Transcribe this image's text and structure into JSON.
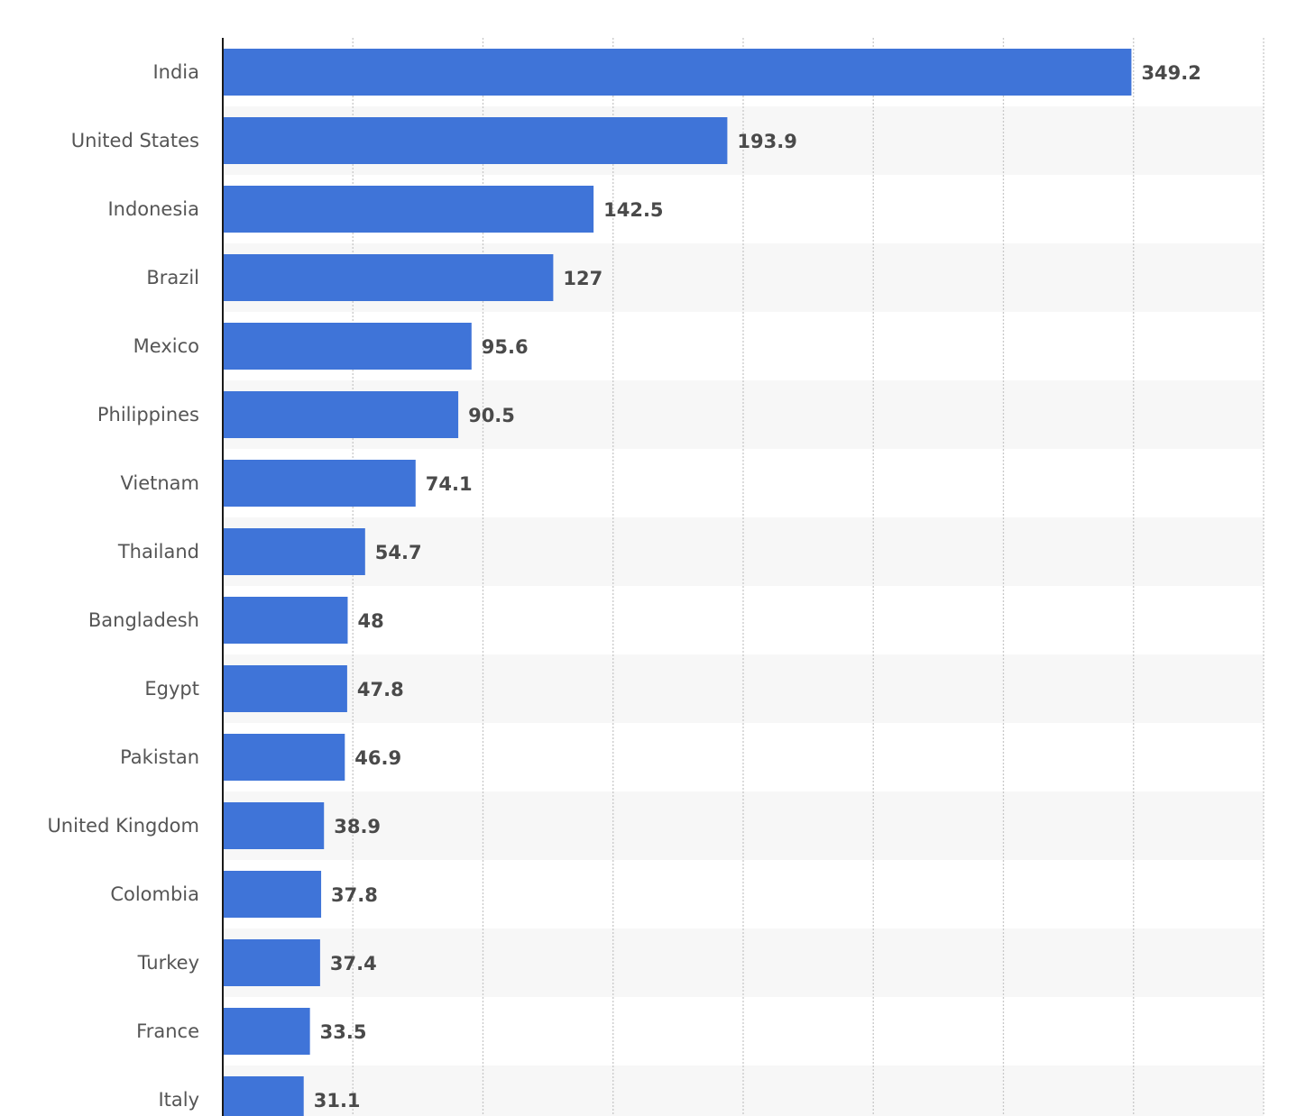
{
  "chart_data": {
    "type": "bar",
    "orientation": "horizontal",
    "categories": [
      "India",
      "United States",
      "Indonesia",
      "Brazil",
      "Mexico",
      "Philippines",
      "Vietnam",
      "Thailand",
      "Bangladesh",
      "Egypt",
      "Pakistan",
      "United Kingdom",
      "Colombia",
      "Turkey",
      "France",
      "Italy"
    ],
    "values": [
      349.2,
      193.9,
      142.5,
      127,
      95.6,
      90.5,
      74.1,
      54.7,
      48,
      47.8,
      46.9,
      38.9,
      37.8,
      37.4,
      33.5,
      31.1
    ],
    "value_labels": [
      "349.2",
      "193.9",
      "142.5",
      "127",
      "95.6",
      "90.5",
      "74.1",
      "54.7",
      "48",
      "47.8",
      "46.9",
      "38.9",
      "37.8",
      "37.4",
      "33.5",
      "31.1"
    ],
    "xlim": [
      0,
      400
    ],
    "x_gridline_step": 50,
    "grid": true,
    "legend": "none",
    "colors": {
      "bar": "#3f74d8",
      "alt_row_band": "#f7f7f7",
      "axis": "#1a1a1a",
      "grid": "#c8c8c8",
      "category_text": "#555555",
      "value_text": "#4a4a4a"
    }
  }
}
